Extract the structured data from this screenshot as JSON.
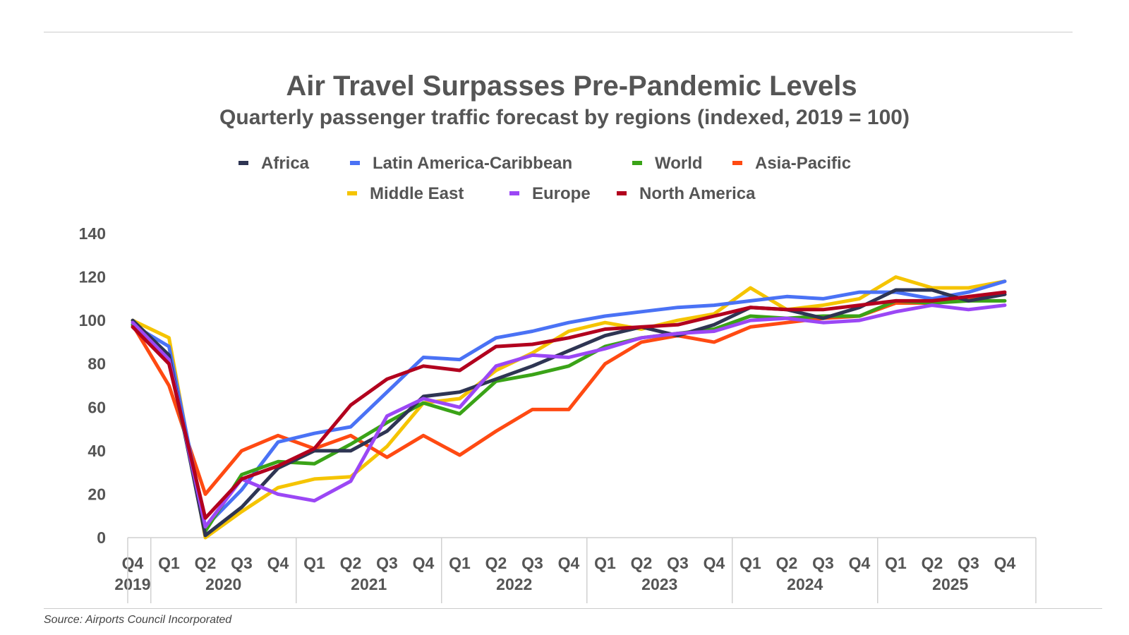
{
  "chart_data": {
    "type": "line",
    "title": "Air Travel Surpasses Pre-Pandemic Levels",
    "subtitle": "Quarterly passenger traffic forecast by regions (indexed, 2019 = 100)",
    "source": "Source: Airports Council Incorporated",
    "ylim": [
      0,
      140
    ],
    "yticks": [
      "0",
      "20",
      "40",
      "60",
      "80",
      "100",
      "120",
      "140"
    ],
    "grid": false,
    "legend_position": "top",
    "x": [
      "Q4 2019",
      "Q1 2020",
      "Q2 2020",
      "Q3 2020",
      "Q4 2020",
      "Q1 2021",
      "Q2 2021",
      "Q3 2021",
      "Q4 2021",
      "Q1 2022",
      "Q2 2022",
      "Q3 2022",
      "Q4 2022",
      "Q1 2023",
      "Q2 2023",
      "Q3 2023",
      "Q4 2023",
      "Q1 2024",
      "Q2 2024",
      "Q3 2024",
      "Q4 2024",
      "Q1 2025",
      "Q2 2025",
      "Q3 2025",
      "Q4 2025"
    ],
    "x_groups": [
      {
        "year": "2019",
        "quarters": [
          "Q4"
        ]
      },
      {
        "year": "2020",
        "quarters": [
          "Q1",
          "Q2",
          "Q3",
          "Q4"
        ]
      },
      {
        "year": "2021",
        "quarters": [
          "Q1",
          "Q2",
          "Q3",
          "Q4"
        ]
      },
      {
        "year": "2022",
        "quarters": [
          "Q1",
          "Q2",
          "Q3",
          "Q4"
        ]
      },
      {
        "year": "2023",
        "quarters": [
          "Q1",
          "Q2",
          "Q3",
          "Q4"
        ]
      },
      {
        "year": "2024",
        "quarters": [
          "Q1",
          "Q2",
          "Q3",
          "Q4"
        ]
      },
      {
        "year": "2025",
        "quarters": [
          "Q1",
          "Q2",
          "Q3",
          "Q4"
        ]
      }
    ],
    "series": [
      {
        "name": "Middle East",
        "color": "#f5c400",
        "values": [
          100,
          92,
          0,
          12,
          23,
          27,
          28,
          42,
          62,
          64,
          77,
          85,
          95,
          99,
          96,
          100,
          103,
          115,
          105,
          107,
          110,
          120,
          115,
          115,
          118
        ]
      },
      {
        "name": "Asia-Pacific",
        "color": "#ff4a12",
        "values": [
          98,
          70,
          20,
          40,
          47,
          41,
          47,
          37,
          47,
          38,
          49,
          59,
          59,
          80,
          90,
          93,
          90,
          97,
          99,
          101,
          102,
          108,
          108,
          110,
          112
        ]
      },
      {
        "name": "Latin America-Caribbean",
        "color": "#4a72f5",
        "values": [
          98,
          88,
          5,
          22,
          44,
          48,
          51,
          67,
          83,
          82,
          92,
          95,
          99,
          102,
          104,
          106,
          107,
          109,
          111,
          110,
          113,
          113,
          110,
          113,
          118
        ]
      },
      {
        "name": "World",
        "color": "#3aa317",
        "values": [
          98,
          82,
          3,
          29,
          35,
          34,
          43,
          53,
          62,
          57,
          72,
          75,
          79,
          88,
          92,
          94,
          96,
          102,
          101,
          102,
          102,
          109,
          108,
          109,
          109
        ]
      },
      {
        "name": "Africa",
        "color": "#2e3553",
        "values": [
          100,
          84,
          1,
          14,
          32,
          40,
          40,
          49,
          65,
          67,
          73,
          79,
          86,
          93,
          97,
          93,
          98,
          106,
          105,
          101,
          106,
          114,
          114,
          109,
          112
        ]
      },
      {
        "name": "Europe",
        "color": "#9b47f5",
        "values": [
          99,
          82,
          5,
          27,
          20,
          17,
          26,
          56,
          64,
          60,
          79,
          84,
          83,
          87,
          92,
          94,
          95,
          100,
          101,
          99,
          100,
          104,
          107,
          105,
          107
        ]
      },
      {
        "name": "North America",
        "color": "#b2001e",
        "values": [
          97,
          80,
          9,
          27,
          33,
          41,
          61,
          73,
          79,
          77,
          88,
          89,
          92,
          96,
          97,
          98,
          102,
          106,
          105,
          105,
          107,
          109,
          109,
          111,
          113
        ]
      }
    ]
  },
  "legend": {
    "africa": {
      "label": "Africa",
      "color": "#2e3553"
    },
    "latam": {
      "label": "Latin America-Caribbean",
      "color": "#4a72f5"
    },
    "world": {
      "label": "World",
      "color": "#3aa317"
    },
    "asia": {
      "label": "Asia-Pacific",
      "color": "#ff4a12"
    },
    "mideast": {
      "label": "Middle East",
      "color": "#f5c400"
    },
    "europe": {
      "label": "Europe",
      "color": "#9b47f5"
    },
    "namerica": {
      "label": "North America",
      "color": "#b2001e"
    }
  }
}
